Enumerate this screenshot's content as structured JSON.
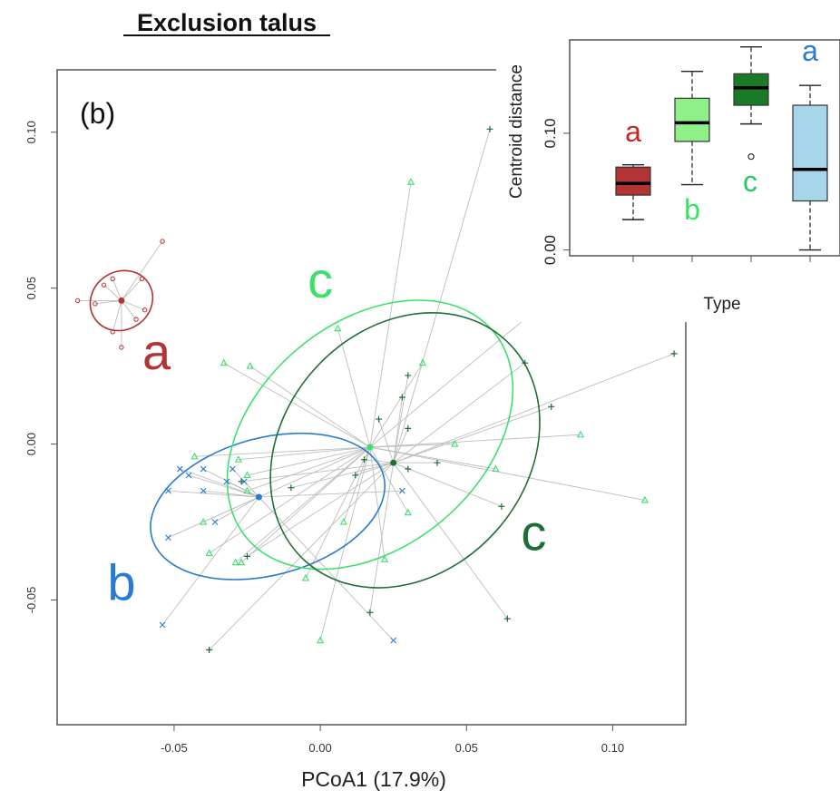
{
  "title": "Exclusion talus",
  "colors": {
    "red": "#b23434",
    "blue": "#2a7bd0",
    "lightgreen": "#3de06a",
    "darkgreen": "#1e6e35"
  },
  "chart_data": [
    {
      "type": "scatter",
      "panel_label": "(b)",
      "xlabel": "PCoA1 (17.9%)",
      "ylabel": "",
      "xlim": [
        -0.09,
        0.125
      ],
      "ylim": [
        -0.09,
        0.12
      ],
      "xticks": [
        -0.05,
        0.0,
        0.05,
        0.1
      ],
      "xtick_labels": [
        "-0.05",
        "0.00",
        "0.05",
        "0.10"
      ],
      "yticks": [
        -0.05,
        0.0,
        0.05,
        0.1
      ],
      "ytick_labels": [
        "-0.05",
        "0.00",
        "0.05",
        "0.10"
      ],
      "group_labels": [
        {
          "text": "a",
          "color": "#b23434",
          "x": -0.056,
          "y": 0.024
        },
        {
          "text": "b",
          "color": "#2a7bd0",
          "x": -0.068,
          "y": -0.05
        },
        {
          "text": "c",
          "color": "#3de06a",
          "x": 0.0,
          "y": 0.047
        },
        {
          "text": "c",
          "color": "#1e6e35",
          "x": 0.073,
          "y": -0.034
        }
      ],
      "series": [
        {
          "marker": "dot",
          "color": "#b23434",
          "centroid": [
            -0.068,
            0.046
          ],
          "ellipse": {
            "cx": -0.068,
            "cy": 0.046,
            "rx": 0.011,
            "ry": 0.0093,
            "angle": 34
          },
          "points": [
            [
              -0.054,
              0.065
            ],
            [
              -0.061,
              0.053
            ],
            [
              -0.071,
              0.053
            ],
            [
              -0.074,
              0.051
            ],
            [
              -0.083,
              0.046
            ],
            [
              -0.077,
              0.045
            ],
            [
              -0.06,
              0.043
            ],
            [
              -0.063,
              0.04
            ],
            [
              -0.071,
              0.036
            ],
            [
              -0.068,
              0.031
            ]
          ]
        },
        {
          "marker": "x",
          "color": "#2a7bd0",
          "centroid": [
            -0.021,
            -0.017
          ],
          "ellipse": {
            "cx": -0.018,
            "cy": -0.02,
            "rx": 0.041,
            "ry": 0.022,
            "angle": 15
          },
          "points": [
            [
              -0.048,
              -0.008
            ],
            [
              -0.045,
              -0.01
            ],
            [
              -0.04,
              -0.008
            ],
            [
              -0.032,
              -0.012
            ],
            [
              -0.03,
              -0.008
            ],
            [
              -0.026,
              -0.012
            ],
            [
              -0.052,
              -0.015
            ],
            [
              -0.036,
              -0.025
            ],
            [
              -0.052,
              -0.03
            ],
            [
              -0.054,
              -0.058
            ],
            [
              0.025,
              -0.063
            ],
            [
              -0.04,
              -0.015
            ],
            [
              0.028,
              -0.015
            ]
          ]
        },
        {
          "marker": "triangle",
          "color": "#3de06a",
          "centroid": [
            0.017,
            -0.001
          ],
          "ellipse": {
            "cx": 0.017,
            "cy": 0.003,
            "rx": 0.055,
            "ry": 0.036,
            "angle": 40
          },
          "points": [
            [
              0.031,
              0.084
            ],
            [
              0.006,
              0.037
            ],
            [
              -0.033,
              0.026
            ],
            [
              -0.024,
              0.025
            ],
            [
              0.075,
              0.044
            ],
            [
              0.035,
              0.026
            ],
            [
              0.089,
              0.003
            ],
            [
              0.046,
              0.0
            ],
            [
              0.06,
              -0.008
            ],
            [
              0.111,
              -0.018
            ],
            [
              -0.043,
              -0.004
            ],
            [
              -0.028,
              -0.005
            ],
            [
              -0.025,
              -0.01
            ],
            [
              -0.025,
              -0.015
            ],
            [
              -0.04,
              -0.025
            ],
            [
              -0.038,
              -0.035
            ],
            [
              -0.027,
              -0.038
            ],
            [
              -0.029,
              -0.038
            ],
            [
              -0.005,
              -0.043
            ],
            [
              0.008,
              -0.025
            ],
            [
              0.022,
              -0.037
            ],
            [
              0.03,
              -0.022
            ],
            [
              0.0,
              -0.063
            ]
          ]
        },
        {
          "marker": "plus",
          "color": "#1e6e35",
          "centroid": [
            0.025,
            -0.006
          ],
          "ellipse": {
            "cx": 0.029,
            "cy": -0.002,
            "rx": 0.051,
            "ry": 0.039,
            "angle": 48
          },
          "points": [
            [
              0.058,
              0.101
            ],
            [
              0.03,
              0.022
            ],
            [
              0.028,
              0.015
            ],
            [
              0.02,
              0.008
            ],
            [
              0.03,
              0.005
            ],
            [
              0.07,
              0.026
            ],
            [
              0.121,
              0.029
            ],
            [
              0.079,
              0.012
            ],
            [
              0.04,
              -0.006
            ],
            [
              0.015,
              -0.005
            ],
            [
              0.03,
              -0.008
            ],
            [
              0.012,
              -0.01
            ],
            [
              -0.01,
              -0.014
            ],
            [
              -0.027,
              -0.012
            ],
            [
              -0.025,
              -0.036
            ],
            [
              0.062,
              -0.02
            ],
            [
              0.064,
              -0.056
            ],
            [
              0.017,
              -0.054
            ],
            [
              -0.038,
              -0.066
            ]
          ]
        }
      ]
    },
    {
      "type": "box",
      "xlabel": "Type",
      "ylabel": "Centroid distance",
      "ylim": [
        -0.005,
        0.18
      ],
      "yticks": [
        0.0,
        0.1
      ],
      "ytick_labels": [
        "0.00",
        "0.10"
      ],
      "boxes": [
        {
          "color": "#b23434",
          "min": 0.026,
          "q1": 0.047,
          "median": 0.057,
          "q3": 0.071,
          "max": 0.073,
          "outliers": [],
          "letter": "a",
          "letter_color": "#c42626",
          "letter_y": 0.093
        },
        {
          "color": "#8fef88",
          "min": 0.056,
          "q1": 0.093,
          "median": 0.109,
          "q3": 0.13,
          "max": 0.153,
          "outliers": [],
          "letter": "b",
          "letter_color": "#3de06a",
          "letter_y": 0.026
        },
        {
          "color": "#1a7a28",
          "min": 0.108,
          "q1": 0.124,
          "median": 0.139,
          "q3": 0.151,
          "max": 0.174,
          "outliers": [
            0.08
          ],
          "letter": "c",
          "letter_color": "#29c76a",
          "letter_y": 0.05
        },
        {
          "color": "#a7d5ea",
          "min": 0.0,
          "q1": 0.042,
          "median": 0.069,
          "q3": 0.124,
          "max": 0.141,
          "outliers": [],
          "letter": "a",
          "letter_color": "#2a7bd0",
          "letter_y": 0.162
        }
      ]
    }
  ]
}
